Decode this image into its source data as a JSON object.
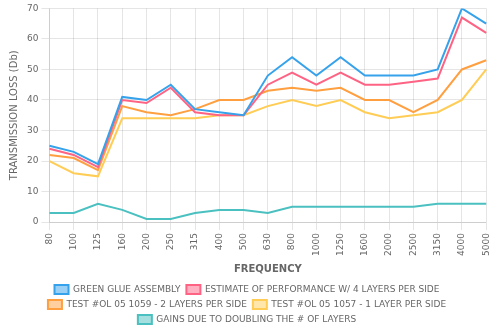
{
  "chart_data": {
    "type": "line",
    "categories": [
      "80",
      "100",
      "125",
      "160",
      "200",
      "250",
      "315",
      "400",
      "500",
      "630",
      "800",
      "1000",
      "1250",
      "1600",
      "2000",
      "2500",
      "3150",
      "4000",
      "5000"
    ],
    "series": [
      {
        "name": "GREEN GLUE ASSEMBLY",
        "values": [
          25,
          23,
          19,
          41,
          40,
          45,
          37,
          36,
          35,
          48,
          54,
          48,
          54,
          48,
          48,
          48,
          50,
          70,
          65
        ]
      },
      {
        "name": "ESTIMATE OF PERFORMANCE W/ 4 LAYERS PER SIDE",
        "values": [
          24,
          22,
          18,
          40,
          39,
          44,
          36,
          35,
          35,
          45,
          49,
          45,
          49,
          45,
          45,
          46,
          47,
          67,
          62
        ]
      },
      {
        "name": "TEST #OL 05 1059 - 2 LAYERS PER SIDE",
        "values": [
          22,
          21,
          17,
          38,
          36,
          35,
          37,
          40,
          40,
          43,
          44,
          43,
          44,
          40,
          40,
          36,
          40,
          50,
          53
        ]
      },
      {
        "name": "TEST #OL 05 1057 - 1 LAYER PER SIDE",
        "values": [
          20,
          16,
          15,
          34,
          34,
          34,
          34,
          35,
          35,
          38,
          40,
          38,
          40,
          36,
          34,
          35,
          36,
          40,
          50
        ]
      },
      {
        "name": "GAINS DUE TO DOUBLING THE # OF LAYERS",
        "values": [
          3,
          3,
          6,
          4,
          1,
          1,
          3,
          4,
          4,
          3,
          5,
          5,
          5,
          5,
          5,
          5,
          6,
          6,
          6
        ]
      }
    ],
    "xlabel": "FREQUENCY",
    "ylabel": "TRANSMISSION LOSS (Db)",
    "ylim": [
      0,
      70
    ],
    "yticks": [
      0,
      10,
      20,
      30,
      40,
      50,
      60,
      70
    ],
    "grid": true,
    "legend": "bottom"
  }
}
